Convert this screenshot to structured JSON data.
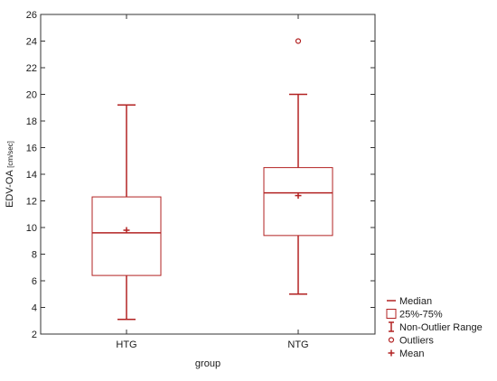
{
  "chart_data": {
    "type": "box",
    "xlabel": "group",
    "ylabel": "EDV-OA",
    "ylabel_unit": "[cm/sec]",
    "ylim": [
      2,
      26
    ],
    "yticks": [
      2,
      4,
      6,
      8,
      10,
      12,
      14,
      16,
      18,
      20,
      22,
      24,
      26
    ],
    "grid": false,
    "legend_position": "bottom-right",
    "color": "#b22222",
    "categories": [
      "HTG",
      "NTG"
    ],
    "boxes": [
      {
        "category": "HTG",
        "min": 3.1,
        "q1": 6.4,
        "median": 9.6,
        "q3": 12.3,
        "max": 19.2,
        "mean": 9.8,
        "outliers": []
      },
      {
        "category": "NTG",
        "min": 5.0,
        "q1": 9.4,
        "median": 12.6,
        "q3": 14.5,
        "max": 20.0,
        "mean": 12.4,
        "outliers": [
          24.0
        ]
      }
    ],
    "legend": [
      {
        "key": "median",
        "label": "Median"
      },
      {
        "key": "box",
        "label": "25%-75%"
      },
      {
        "key": "range",
        "label": "Non-Outlier Range"
      },
      {
        "key": "outlier",
        "label": "Outliers"
      },
      {
        "key": "mean",
        "label": "Mean"
      }
    ]
  }
}
